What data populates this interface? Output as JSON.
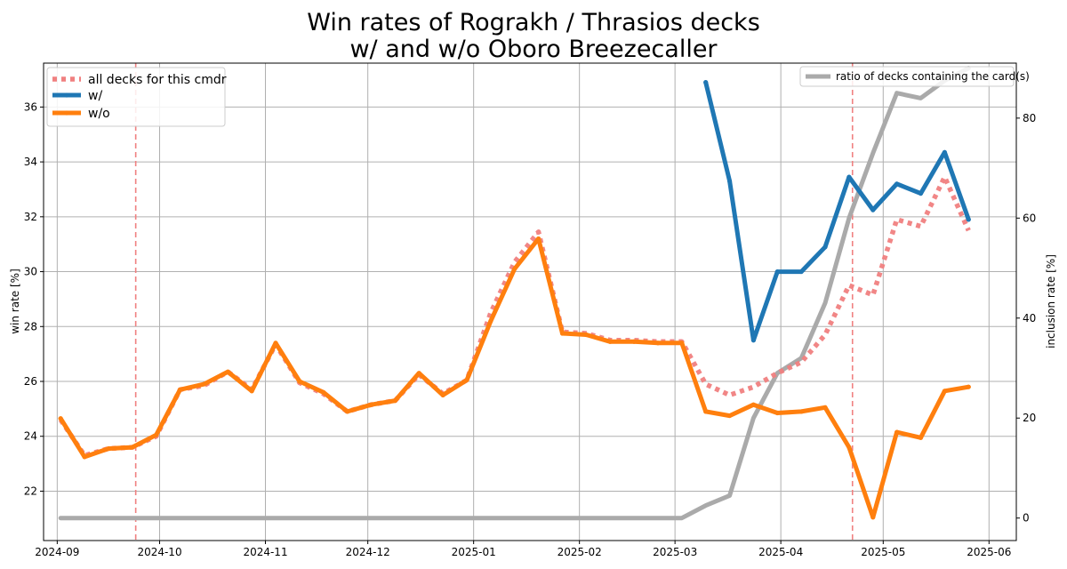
{
  "chart_data": {
    "type": "line",
    "title": [
      "Win rates of Rograkh / Thrasios decks",
      "w/ and w/o Oboro Breezecaller"
    ],
    "xlabel": "",
    "ylabel": "win rate [%]",
    "y2label": "inclusion rate [%]",
    "xlim": [
      "2024-08-28",
      "2025-06-09"
    ],
    "ylim": [
      20.2,
      37.6
    ],
    "y2lim": [
      -4.5,
      91
    ],
    "x_tick_labels": [
      "2024-09",
      "2024-10",
      "2024-11",
      "2024-12",
      "2025-01",
      "2025-02",
      "2025-03",
      "2025-04",
      "2025-05",
      "2025-06"
    ],
    "x_tick_dates": [
      "2024-09-01",
      "2024-10-01",
      "2024-11-01",
      "2024-12-01",
      "2025-01-01",
      "2025-02-01",
      "2025-03-01",
      "2025-04-01",
      "2025-05-01",
      "2025-06-01"
    ],
    "y_ticks": [
      22,
      24,
      26,
      28,
      30,
      32,
      34,
      36
    ],
    "y2_ticks": [
      0,
      20,
      40,
      60,
      80
    ],
    "grid": true,
    "vertical_markers": {
      "dates": [
        "2024-09-24",
        "2025-04-22"
      ],
      "color": "#f08080"
    },
    "legend_left": {
      "placement": "top-left",
      "entries": [
        "all decks for this cmdr",
        "w/",
        "w/o"
      ]
    },
    "legend_right": {
      "placement": "top-right",
      "entries": [
        "ratio of decks containing the card(s)"
      ]
    },
    "series": [
      {
        "name": "all decks for this cmdr",
        "axis": "left",
        "style": "dotted",
        "color": "#f08080",
        "x": [
          "2024-09-02",
          "2024-09-09",
          "2024-09-16",
          "2024-09-23",
          "2024-09-30",
          "2024-10-07",
          "2024-10-14",
          "2024-10-21",
          "2024-10-28",
          "2024-11-04",
          "2024-11-11",
          "2024-11-18",
          "2024-11-25",
          "2024-12-02",
          "2024-12-09",
          "2024-12-16",
          "2024-12-23",
          "2024-12-30",
          "2025-01-06",
          "2025-01-13",
          "2025-01-20",
          "2025-01-27",
          "2025-02-03",
          "2025-02-10",
          "2025-02-17",
          "2025-02-24",
          "2025-03-03",
          "2025-03-10",
          "2025-03-17",
          "2025-03-24",
          "2025-03-31",
          "2025-04-07",
          "2025-04-14",
          "2025-04-21",
          "2025-04-28",
          "2025-05-05",
          "2025-05-12",
          "2025-05-19",
          "2025-05-26"
        ],
        "values": [
          24.6,
          23.3,
          23.55,
          23.6,
          24.0,
          25.7,
          25.85,
          26.35,
          25.7,
          27.35,
          25.95,
          25.55,
          24.9,
          25.15,
          25.3,
          26.25,
          25.55,
          26.05,
          28.5,
          30.35,
          31.45,
          27.8,
          27.75,
          27.5,
          27.5,
          27.45,
          27.45,
          25.9,
          25.5,
          25.8,
          26.3,
          26.7,
          27.7,
          29.5,
          29.15,
          31.9,
          31.65,
          33.45,
          31.5
        ]
      },
      {
        "name": "w/",
        "axis": "left",
        "style": "solid",
        "color": "#1f77b4",
        "x": [
          "2025-03-10",
          "2025-03-17",
          "2025-03-24",
          "2025-03-31",
          "2025-04-07",
          "2025-04-14",
          "2025-04-21",
          "2025-04-28",
          "2025-05-05",
          "2025-05-12",
          "2025-05-19",
          "2025-05-26"
        ],
        "values": [
          36.9,
          33.3,
          27.5,
          30.0,
          30.0,
          30.9,
          33.45,
          32.25,
          33.2,
          32.85,
          34.35,
          31.9
        ]
      },
      {
        "name": "w/o",
        "axis": "left",
        "style": "solid",
        "color": "#ff7f0e",
        "x": [
          "2024-09-02",
          "2024-09-09",
          "2024-09-16",
          "2024-09-23",
          "2024-09-30",
          "2024-10-07",
          "2024-10-14",
          "2024-10-21",
          "2024-10-28",
          "2024-11-04",
          "2024-11-11",
          "2024-11-18",
          "2024-11-25",
          "2024-12-02",
          "2024-12-09",
          "2024-12-16",
          "2024-12-23",
          "2024-12-30",
          "2025-01-06",
          "2025-01-13",
          "2025-01-20",
          "2025-01-27",
          "2025-02-03",
          "2025-02-10",
          "2025-02-17",
          "2025-02-24",
          "2025-03-03",
          "2025-03-10",
          "2025-03-17",
          "2025-03-24",
          "2025-03-31",
          "2025-04-07",
          "2025-04-14",
          "2025-04-21",
          "2025-04-28",
          "2025-05-05",
          "2025-05-12",
          "2025-05-19",
          "2025-05-26"
        ],
        "values": [
          24.65,
          23.25,
          23.55,
          23.6,
          24.05,
          25.7,
          25.9,
          26.35,
          25.65,
          27.4,
          26.0,
          25.6,
          24.9,
          25.15,
          25.3,
          26.3,
          25.5,
          26.05,
          28.2,
          30.1,
          31.2,
          27.75,
          27.7,
          27.45,
          27.45,
          27.4,
          27.4,
          24.9,
          24.75,
          25.15,
          24.85,
          24.9,
          25.05,
          23.6,
          21.05,
          24.15,
          23.95,
          25.65,
          25.8
        ]
      },
      {
        "name": "ratio of decks containing the card(s)",
        "axis": "right",
        "style": "solid",
        "color": "#aaaaaa",
        "x": [
          "2024-09-02",
          "2025-03-03",
          "2025-03-10",
          "2025-03-17",
          "2025-03-24",
          "2025-03-31",
          "2025-04-07",
          "2025-04-14",
          "2025-04-21",
          "2025-04-28",
          "2025-05-05",
          "2025-05-12",
          "2025-05-19",
          "2025-05-26"
        ],
        "values": [
          0,
          0,
          2.5,
          4.5,
          20.0,
          29.0,
          32.0,
          43.0,
          60.0,
          73.0,
          85.0,
          84.0,
          87.5,
          90.0
        ]
      }
    ]
  }
}
